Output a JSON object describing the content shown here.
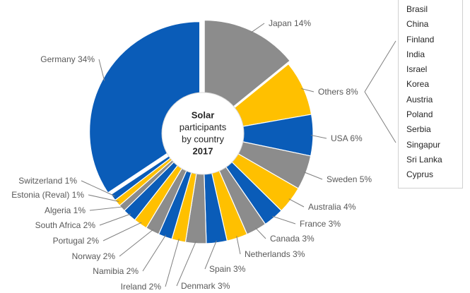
{
  "chart_data": {
    "type": "pie",
    "title_lines": [
      "Solar",
      "participants",
      "by country",
      "2017"
    ],
    "slices": [
      {
        "label": "Japan",
        "value": 14,
        "text": "Japan 14%",
        "color": "#8c8c8c"
      },
      {
        "label": "Others",
        "value": 8,
        "text": "Others 8%",
        "color": "#ffc000"
      },
      {
        "label": "USA",
        "value": 6,
        "text": "USA 6%",
        "color": "#0a5cb8"
      },
      {
        "label": "Sweden",
        "value": 5,
        "text": "Sweden 5%",
        "color": "#8c8c8c"
      },
      {
        "label": "Australia",
        "value": 4,
        "text": "Australia 4%",
        "color": "#ffc000"
      },
      {
        "label": "France",
        "value": 3,
        "text": "France 3%",
        "color": "#0a5cb8"
      },
      {
        "label": "Canada",
        "value": 3,
        "text": "Canada 3%",
        "color": "#8c8c8c"
      },
      {
        "label": "Netherlands",
        "value": 3,
        "text": "Netherlands 3%",
        "color": "#ffc000"
      },
      {
        "label": "Spain",
        "value": 3,
        "text": "Spain 3%",
        "color": "#0a5cb8"
      },
      {
        "label": "Denmark",
        "value": 3,
        "text": "Denmark 3%",
        "color": "#8c8c8c"
      },
      {
        "label": "Ireland",
        "value": 2,
        "text": "Ireland 2%",
        "color": "#ffc000"
      },
      {
        "label": "Namibia",
        "value": 2,
        "text": "Namibia 2%",
        "color": "#0a5cb8"
      },
      {
        "label": "Norway",
        "value": 2,
        "text": "Norway 2%",
        "color": "#8c8c8c"
      },
      {
        "label": "Portugal",
        "value": 2,
        "text": "Portugal 2%",
        "color": "#ffc000"
      },
      {
        "label": "South Africa",
        "value": 2,
        "text": "South Africa 2%",
        "color": "#0a5cb8"
      },
      {
        "label": "Algeria",
        "value": 1,
        "text": "Algeria 1%",
        "color": "#8c8c8c"
      },
      {
        "label": "Estonia (Reval)",
        "value": 1,
        "text": "Estonia (Reval) 1%",
        "color": "#ffc000"
      },
      {
        "label": "Switzerland",
        "value": 1,
        "text": "Switzerland 1%",
        "color": "#0a5cb8"
      },
      {
        "label": "Germany",
        "value": 34,
        "text": "Germany 34%",
        "color": "#0a5cb8"
      }
    ],
    "others_breakdown": [
      "Brasil",
      "China",
      "Finland",
      "India",
      "Israel",
      "Korea",
      "Austria",
      "Poland",
      "Serbia",
      "Singapur",
      "Sri Lanka",
      "Cyprus"
    ]
  }
}
